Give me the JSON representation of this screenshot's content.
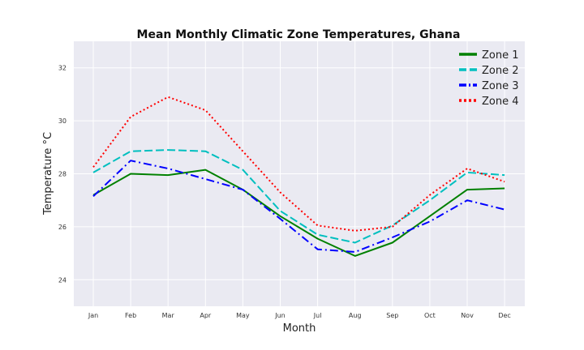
{
  "chart_data": {
    "type": "line",
    "title": "Mean Monthly Climatic Zone Temperatures, Ghana",
    "xlabel": "Month",
    "ylabel": "Temperature °C",
    "categories": [
      "Jan",
      "Feb",
      "Mar",
      "Apr",
      "May",
      "Jun",
      "Jul",
      "Aug",
      "Sep",
      "Oct",
      "Nov",
      "Dec"
    ],
    "ylim": [
      23,
      33
    ],
    "yticks": [
      24,
      26,
      28,
      30,
      32
    ],
    "grid": true,
    "legend_position": "top-right",
    "series": [
      {
        "name": "Zone 1",
        "color": "#008000",
        "style": "solid",
        "values": [
          27.2,
          28.0,
          27.95,
          28.15,
          27.4,
          26.4,
          25.55,
          24.9,
          25.4,
          26.4,
          27.4,
          27.45
        ]
      },
      {
        "name": "Zone 2",
        "color": "#00bfbf",
        "style": "dashed",
        "values": [
          28.05,
          28.85,
          28.9,
          28.85,
          28.15,
          26.6,
          25.7,
          25.4,
          26.05,
          27.0,
          28.05,
          27.95
        ]
      },
      {
        "name": "Zone 3",
        "color": "#0000ff",
        "style": "dashdot",
        "values": [
          27.15,
          28.5,
          28.2,
          27.8,
          27.4,
          26.3,
          25.15,
          25.05,
          25.6,
          26.2,
          27.0,
          26.65
        ]
      },
      {
        "name": "Zone 4",
        "color": "#ff0000",
        "style": "dotted",
        "values": [
          28.25,
          30.15,
          30.9,
          30.4,
          28.85,
          27.3,
          26.05,
          25.85,
          26.0,
          27.2,
          28.2,
          27.7
        ]
      }
    ]
  }
}
